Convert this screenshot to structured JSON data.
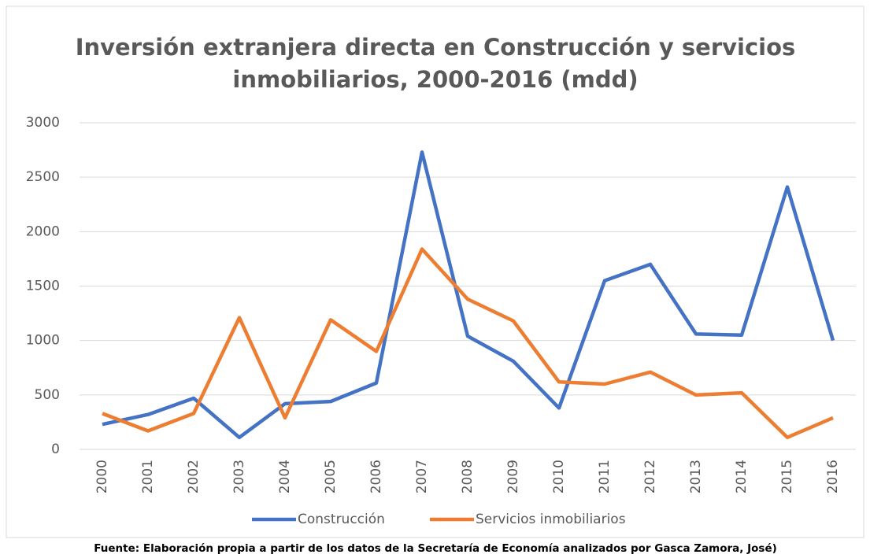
{
  "chart_data": {
    "type": "line",
    "title": [
      "Inversión extranjera directa en Construcción y servicios",
      "inmobiliarios, 2000-2016 (mdd)"
    ],
    "categories": [
      "2000",
      "2001",
      "2002",
      "2003",
      "2004",
      "2005",
      "2006",
      "2007",
      "2008",
      "2009",
      "2010",
      "2011",
      "2012",
      "2013",
      "2014",
      "2015",
      "2016"
    ],
    "series": [
      {
        "name": "Construcción",
        "color": "#4472c4",
        "values": [
          230,
          320,
          470,
          110,
          420,
          440,
          610,
          2730,
          1040,
          810,
          380,
          1550,
          1700,
          1060,
          1050,
          2410,
          1000
        ]
      },
      {
        "name": "Servicios inmobiliarios",
        "color": "#ed7d31",
        "values": [
          330,
          170,
          330,
          1210,
          290,
          1190,
          900,
          1840,
          1380,
          1180,
          620,
          600,
          710,
          500,
          520,
          110,
          290
        ]
      }
    ],
    "ylim": [
      0,
      3000
    ],
    "yticks": [
      0,
      500,
      1000,
      1500,
      2000,
      2500,
      3000
    ],
    "grid": true,
    "legend": "bottom",
    "source": "Fuente: Elaboración propia a partir de los datos de la Secretaría de Economía analizados por Gasca Zamora, José)"
  }
}
